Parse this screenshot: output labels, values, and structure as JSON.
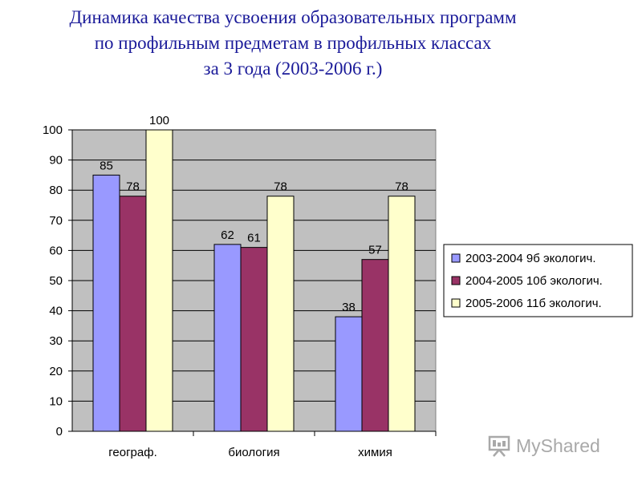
{
  "title_lines": [
    "Динамика качества усвоения образовательных программ",
    "по профильным предметам в профильных классах",
    "за 3 года (2003-2006 г.)"
  ],
  "watermark": "MyShared",
  "chart_data": {
    "type": "bar",
    "title": "Динамика качества усвоения образовательных программ по профильным предметам в профильных классах за 3 года (2003-2006 г.)",
    "xlabel": "",
    "ylabel": "",
    "categories": [
      "географ.",
      "биология",
      "химия"
    ],
    "ylim": [
      0,
      100
    ],
    "yticks": [
      0,
      10,
      20,
      30,
      40,
      50,
      60,
      70,
      80,
      90,
      100
    ],
    "grid": true,
    "legend_position": "right",
    "series": [
      {
        "name": "2003-2004 9б экологич.",
        "color": "#9999ff",
        "values": [
          85,
          62,
          38
        ]
      },
      {
        "name": "2004-2005 10б экологич.",
        "color": "#993366",
        "values": [
          78,
          61,
          57
        ]
      },
      {
        "name": "2005-2006 11б экологич.",
        "color": "#ffffcc",
        "values": [
          100,
          78,
          78
        ]
      }
    ],
    "plot_background": "#c0c0c0"
  }
}
